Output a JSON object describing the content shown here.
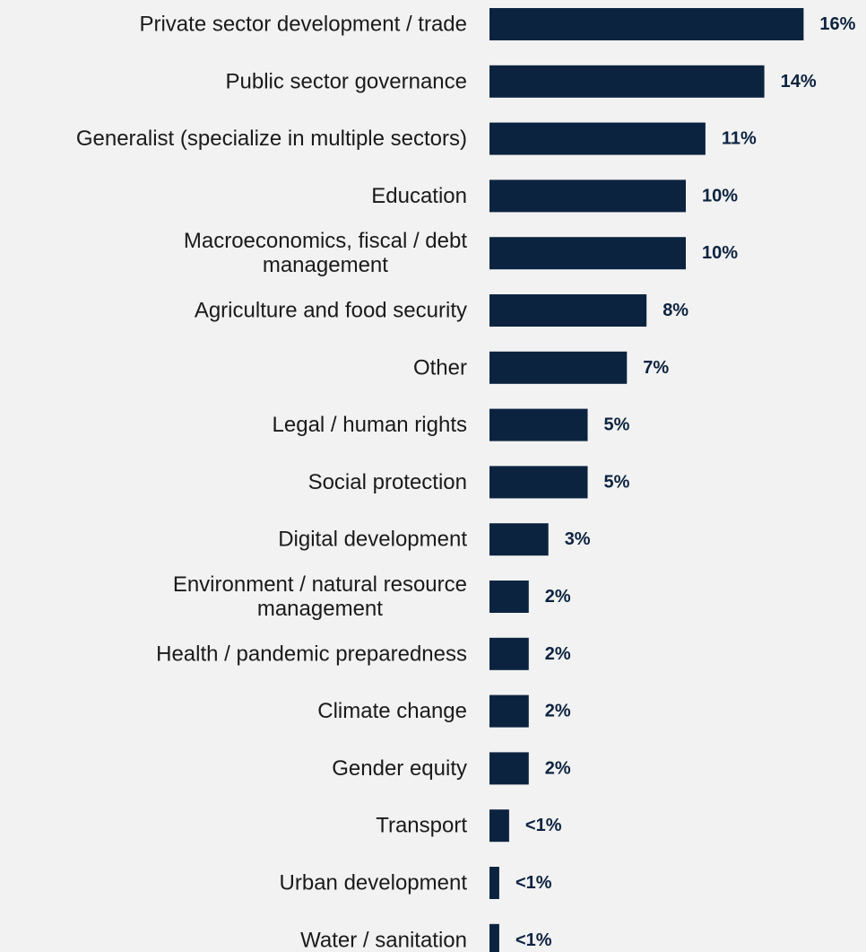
{
  "chart_data": {
    "type": "bar",
    "orientation": "horizontal",
    "grid": false,
    "xlim": [
      0,
      16
    ],
    "colors": {
      "bar": "#0c2340",
      "background": "#f2f2f2"
    },
    "categories": [
      [
        "Private sector development / trade"
      ],
      [
        "Public sector governance"
      ],
      [
        "Generalist (specialize in multiple sectors)"
      ],
      [
        "Education"
      ],
      [
        "Macroeconomics, fiscal / debt",
        "management"
      ],
      [
        "Agriculture and food security"
      ],
      [
        "Other"
      ],
      [
        "Legal / human rights"
      ],
      [
        "Social protection"
      ],
      [
        "Digital development"
      ],
      [
        "Environment / natural resource",
        "management"
      ],
      [
        "Health / pandemic preparedness"
      ],
      [
        "Climate change"
      ],
      [
        "Gender equity"
      ],
      [
        "Transport"
      ],
      [
        "Urban development"
      ],
      [
        "Water / sanitation"
      ]
    ],
    "values": [
      16,
      14,
      11,
      10,
      10,
      8,
      7,
      5,
      5,
      3,
      2,
      2,
      2,
      2,
      1,
      0.5,
      0.5
    ],
    "data_labels": [
      "16%",
      "14%",
      "11%",
      "10%",
      "10%",
      "8%",
      "7%",
      "5%",
      "5%",
      "3%",
      "2%",
      "2%",
      "2%",
      "2%",
      "<1%",
      "<1%",
      "<1%"
    ]
  }
}
